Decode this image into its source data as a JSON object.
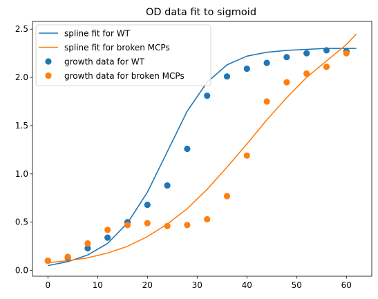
{
  "chart_data": {
    "type": "scatter",
    "title": "OD data fit to sigmoid",
    "xlabel": "",
    "ylabel": "",
    "xlim": [
      -3.1,
      65.1
    ],
    "ylim": [
      -0.06,
      2.58
    ],
    "xticks": [
      0,
      10,
      20,
      30,
      40,
      50,
      60
    ],
    "yticks": [
      0.0,
      0.5,
      1.0,
      1.5,
      2.0,
      2.5
    ],
    "xtick_labels": [
      "0",
      "10",
      "20",
      "30",
      "40",
      "50",
      "60"
    ],
    "ytick_labels": [
      "0.0",
      "0.5",
      "1.0",
      "1.5",
      "2.0",
      "2.5"
    ],
    "grid": false,
    "legend_position": "top-left",
    "lines": [
      {
        "name": "spline fit for WT",
        "color": "#1f77b4",
        "x": [
          0,
          4,
          8,
          12,
          16,
          20,
          24,
          28,
          32,
          36,
          40,
          44,
          48,
          52,
          56,
          60,
          62
        ],
        "y": [
          0.05,
          0.09,
          0.16,
          0.28,
          0.49,
          0.81,
          1.23,
          1.65,
          1.95,
          2.13,
          2.22,
          2.26,
          2.28,
          2.29,
          2.3,
          2.3,
          2.3
        ]
      },
      {
        "name": "spline fit for broken MCPs",
        "color": "#ff7f0e",
        "x": [
          0,
          4,
          8,
          12,
          16,
          20,
          24,
          28,
          32,
          36,
          40,
          44,
          48,
          52,
          56,
          60,
          62
        ],
        "y": [
          0.08,
          0.1,
          0.13,
          0.18,
          0.25,
          0.35,
          0.48,
          0.64,
          0.84,
          1.07,
          1.31,
          1.56,
          1.79,
          2.0,
          2.17,
          2.34,
          2.45
        ]
      }
    ],
    "series": [
      {
        "name": "growth data for WT",
        "color": "#1f77b4",
        "x": [
          0,
          4,
          8,
          12,
          16,
          20,
          24,
          28,
          32,
          36,
          40,
          44,
          48,
          52,
          56,
          60
        ],
        "y": [
          0.1,
          0.13,
          0.23,
          0.34,
          0.5,
          0.68,
          0.88,
          1.26,
          1.81,
          2.01,
          2.09,
          2.15,
          2.21,
          2.25,
          2.28,
          2.27
        ]
      },
      {
        "name": "growth data for broken MCPs",
        "color": "#ff7f0e",
        "x": [
          0,
          4,
          8,
          12,
          16,
          20,
          24,
          28,
          32,
          36,
          40,
          44,
          48,
          52,
          56,
          60
        ],
        "y": [
          0.1,
          0.14,
          0.28,
          0.42,
          0.47,
          0.49,
          0.46,
          0.47,
          0.53,
          0.77,
          1.19,
          1.75,
          1.95,
          2.04,
          2.11,
          2.25
        ]
      }
    ]
  }
}
